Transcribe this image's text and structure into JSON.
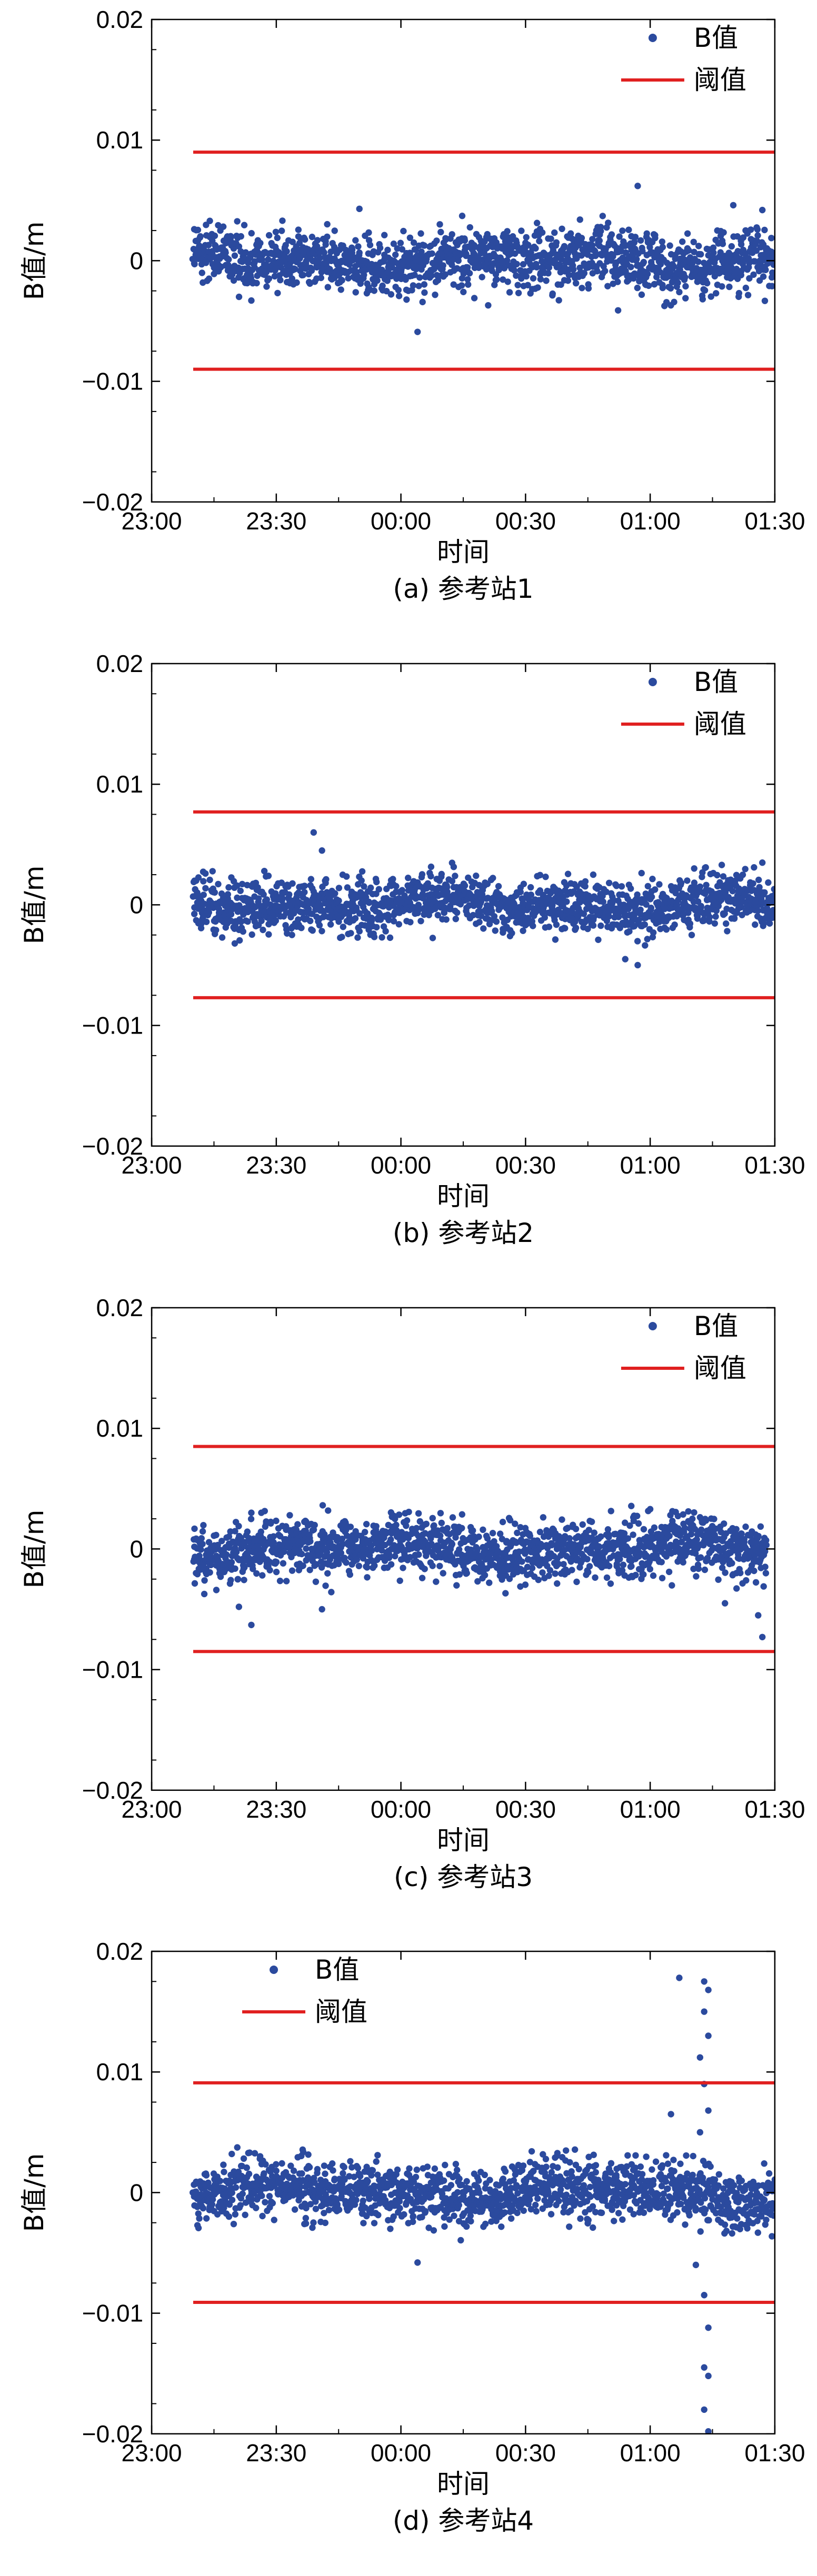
{
  "chart_data": [
    {
      "type": "scatter",
      "caption": "(a) 参考站1",
      "xlabel": "时间",
      "ylabel": "B值/m",
      "x_ticks": [
        "23:00",
        "23:30",
        "00:00",
        "00:30",
        "01:00",
        "01:30"
      ],
      "y_ticks": [
        "0.02",
        "0.01",
        "0",
        "−0.01",
        "−0.02"
      ],
      "xlim": [
        "23:00",
        "01:30"
      ],
      "ylim": [
        -0.02,
        0.02
      ],
      "legend": {
        "position": "top-right",
        "entries": [
          {
            "label": "B值",
            "kind": "marker",
            "color": "#2b4a9e"
          },
          {
            "label": "阈值",
            "kind": "line",
            "color": "#e02020"
          }
        ]
      },
      "series": [
        {
          "name": "阈值",
          "kind": "line",
          "color": "#e02020",
          "values": [
            0.009,
            -0.009
          ]
        },
        {
          "name": "B值",
          "kind": "scatter",
          "color": "#2b4a9e",
          "x_range": [
            "23:10",
            "01:30"
          ],
          "spread": 0.0012,
          "points": [
            {
              "x": "23:14",
              "y": 0.0033
            },
            {
              "x": "23:24",
              "y": -0.0033
            },
            {
              "x": "23:50",
              "y": 0.0043
            },
            {
              "x": "00:04",
              "y": -0.0059
            },
            {
              "x": "00:21",
              "y": -0.0037
            },
            {
              "x": "00:57",
              "y": 0.0062
            },
            {
              "x": "01:07",
              "y": -0.0026
            },
            {
              "x": "01:20",
              "y": 0.0046
            },
            {
              "x": "01:27",
              "y": 0.0042
            }
          ]
        }
      ]
    },
    {
      "type": "scatter",
      "caption": "(b) 参考站2",
      "xlabel": "时间",
      "ylabel": "B值/m",
      "x_ticks": [
        "23:00",
        "23:30",
        "00:00",
        "00:30",
        "01:00",
        "01:30"
      ],
      "y_ticks": [
        "0.02",
        "0.01",
        "0",
        "−0.01",
        "−0.02"
      ],
      "xlim": [
        "23:00",
        "01:30"
      ],
      "ylim": [
        -0.02,
        0.02
      ],
      "legend": {
        "position": "top-right",
        "entries": [
          {
            "label": "B值",
            "kind": "marker",
            "color": "#2b4a9e"
          },
          {
            "label": "阈值",
            "kind": "line",
            "color": "#e02020"
          }
        ]
      },
      "series": [
        {
          "name": "阈值",
          "kind": "line",
          "color": "#e02020",
          "values": [
            0.0077,
            -0.0077
          ]
        },
        {
          "name": "B值",
          "kind": "scatter",
          "color": "#2b4a9e",
          "x_range": [
            "23:10",
            "01:30"
          ],
          "spread": 0.0011,
          "points": [
            {
              "x": "23:39",
              "y": 0.006
            },
            {
              "x": "23:41",
              "y": 0.0045
            },
            {
              "x": "23:20",
              "y": -0.0032
            },
            {
              "x": "00:54",
              "y": -0.0045
            },
            {
              "x": "00:57",
              "y": -0.005
            },
            {
              "x": "01:27",
              "y": 0.0035
            },
            {
              "x": "01:10",
              "y": -0.0025
            }
          ]
        }
      ]
    },
    {
      "type": "scatter",
      "caption": "(c) 参考站3",
      "xlabel": "时间",
      "ylabel": "B值/m",
      "x_ticks": [
        "23:00",
        "23:30",
        "00:00",
        "00:30",
        "01:00",
        "01:30"
      ],
      "y_ticks": [
        "0.02",
        "0.01",
        "0",
        "−0.01",
        "−0.02"
      ],
      "xlim": [
        "23:00",
        "01:30"
      ],
      "ylim": [
        -0.02,
        0.02
      ],
      "legend": {
        "position": "top-right",
        "entries": [
          {
            "label": "B值",
            "kind": "marker",
            "color": "#2b4a9e"
          },
          {
            "label": "阈值",
            "kind": "line",
            "color": "#e02020"
          }
        ]
      },
      "series": [
        {
          "name": "阈值",
          "kind": "line",
          "color": "#e02020",
          "values": [
            0.0085,
            -0.0085
          ]
        },
        {
          "name": "B值",
          "kind": "scatter",
          "color": "#2b4a9e",
          "x_range": [
            "23:10",
            "01:28"
          ],
          "spread": 0.0012,
          "points": [
            {
              "x": "23:24",
              "y": -0.0063
            },
            {
              "x": "23:21",
              "y": -0.0048
            },
            {
              "x": "23:41",
              "y": -0.005
            },
            {
              "x": "01:27",
              "y": -0.0073
            },
            {
              "x": "01:26",
              "y": -0.0055
            },
            {
              "x": "01:18",
              "y": -0.0045
            },
            {
              "x": "01:00",
              "y": 0.0033
            },
            {
              "x": "23:24",
              "y": 0.003
            }
          ]
        }
      ]
    },
    {
      "type": "scatter",
      "caption": "(d) 参考站4",
      "xlabel": "时间",
      "ylabel": "B值/m",
      "x_ticks": [
        "23:00",
        "23:30",
        "00:00",
        "00:30",
        "01:00",
        "01:30"
      ],
      "y_ticks": [
        "0.02",
        "0.01",
        "0",
        "−0.01",
        "−0.02"
      ],
      "xlim": [
        "23:00",
        "01:30"
      ],
      "ylim": [
        -0.02,
        0.02
      ],
      "legend": {
        "position": "top-left",
        "entries": [
          {
            "label": "B值",
            "kind": "marker",
            "color": "#2b4a9e"
          },
          {
            "label": "阈值",
            "kind": "line",
            "color": "#e02020"
          }
        ]
      },
      "series": [
        {
          "name": "阈值",
          "kind": "line",
          "color": "#e02020",
          "values": [
            0.0091,
            -0.0091
          ]
        },
        {
          "name": "B值",
          "kind": "scatter",
          "color": "#2b4a9e",
          "x_range": [
            "23:10",
            "01:30"
          ],
          "spread": 0.0012,
          "points": [
            {
              "x": "01:07",
              "y": 0.0178
            },
            {
              "x": "01:13",
              "y": 0.0175
            },
            {
              "x": "01:14",
              "y": 0.0168
            },
            {
              "x": "01:13",
              "y": 0.015
            },
            {
              "x": "01:14",
              "y": 0.013
            },
            {
              "x": "01:12",
              "y": 0.0112
            },
            {
              "x": "01:13",
              "y": 0.009
            },
            {
              "x": "01:14",
              "y": 0.0068
            },
            {
              "x": "01:12",
              "y": 0.005
            },
            {
              "x": "01:11",
              "y": -0.006
            },
            {
              "x": "01:13",
              "y": -0.0085
            },
            {
              "x": "01:14",
              "y": -0.0112
            },
            {
              "x": "01:13",
              "y": -0.0145
            },
            {
              "x": "01:14",
              "y": -0.0152
            },
            {
              "x": "01:13",
              "y": -0.018
            },
            {
              "x": "01:14",
              "y": -0.0198
            },
            {
              "x": "01:05",
              "y": 0.0065
            },
            {
              "x": "00:04",
              "y": -0.0058
            }
          ]
        }
      ]
    }
  ]
}
